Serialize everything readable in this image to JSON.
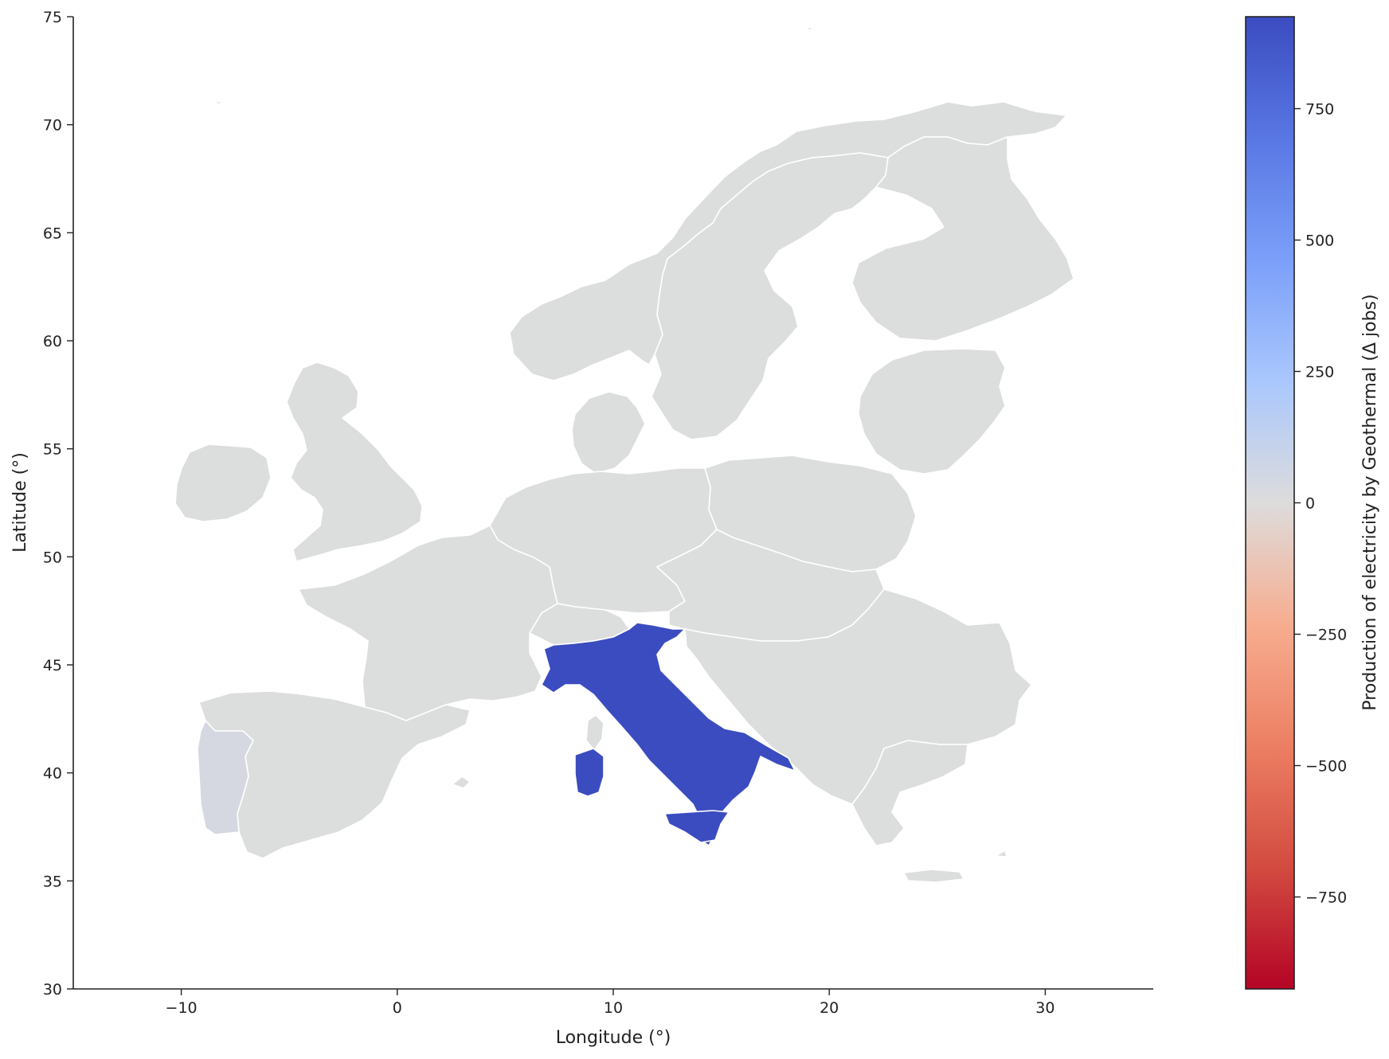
{
  "chart_data": {
    "type": "choropleth",
    "xlabel": "Longitude (°)",
    "ylabel": "Latitude (°)",
    "xlim": [
      -15,
      35
    ],
    "ylim": [
      30,
      75
    ],
    "x_ticks": [
      -10,
      0,
      10,
      20,
      30
    ],
    "y_ticks": [
      30,
      35,
      40,
      45,
      50,
      55,
      60,
      65,
      70,
      75
    ],
    "x_tick_labels": [
      "−10",
      "0",
      "10",
      "20",
      "30"
    ],
    "y_tick_labels": [
      "30",
      "35",
      "40",
      "45",
      "50",
      "55",
      "60",
      "65",
      "70",
      "75"
    ],
    "colorbar": {
      "label": "Production of electricity by Geothermal (Δ jobs)",
      "colormap": "coolwarm",
      "vmin": -925,
      "vmax": 925,
      "ticks": [
        -750,
        -500,
        -250,
        0,
        250,
        500,
        750
      ],
      "tick_labels": [
        "−750",
        "−500",
        "−250",
        "0",
        "250",
        "500",
        "750"
      ],
      "color_low": "#b40426",
      "color_mid": "#dddcdc",
      "color_high": "#3b4cc0"
    },
    "colors": {
      "neutral": "#dcdddd",
      "italy": "#3b4cc0",
      "portugal": "#d5d8e0",
      "border": "#ffffff"
    },
    "regions": [
      {
        "name": "Italy",
        "value": 925
      },
      {
        "name": "Portugal",
        "value": 25
      },
      {
        "name": "Spain",
        "value": 0
      },
      {
        "name": "France",
        "value": 0
      },
      {
        "name": "United Kingdom",
        "value": 0
      },
      {
        "name": "Ireland",
        "value": 0
      },
      {
        "name": "Germany",
        "value": 0
      },
      {
        "name": "Poland",
        "value": 0
      },
      {
        "name": "Norway",
        "value": 0
      },
      {
        "name": "Sweden",
        "value": 0
      },
      {
        "name": "Finland",
        "value": 0
      },
      {
        "name": "Greece",
        "value": 0
      },
      {
        "name": "Romania",
        "value": 0
      }
    ]
  }
}
